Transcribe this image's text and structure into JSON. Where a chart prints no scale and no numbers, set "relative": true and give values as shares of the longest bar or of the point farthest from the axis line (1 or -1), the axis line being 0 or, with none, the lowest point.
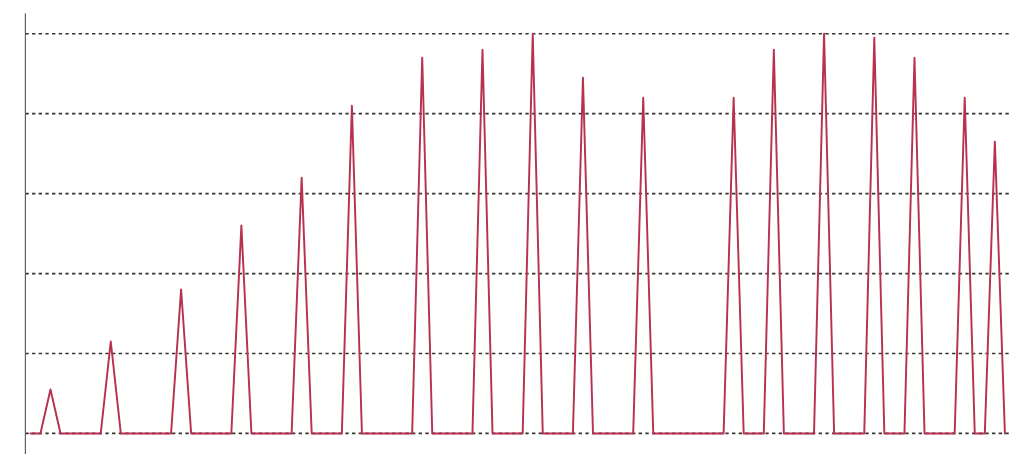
{
  "chart_data": {
    "type": "line",
    "relative": true,
    "grid": "y",
    "line_style": "solid",
    "categories": [
      null,
      null,
      null,
      null,
      null,
      null,
      null,
      null,
      null,
      null,
      null,
      null,
      null,
      null,
      null,
      null,
      null,
      null,
      null,
      null,
      null,
      null,
      null,
      null,
      null,
      null,
      null,
      null,
      null,
      null,
      null,
      null,
      null,
      null,
      null,
      null,
      null,
      null,
      null,
      null,
      null,
      null,
      null,
      null,
      null,
      null,
      null,
      null,
      null,
      null,
      null,
      null,
      null,
      null,
      null,
      null,
      null,
      null,
      null,
      null,
      null,
      null,
      null,
      null,
      null,
      null,
      null,
      null,
      null,
      null,
      null,
      null,
      null,
      null,
      null,
      null,
      null,
      null,
      null,
      null,
      null,
      null,
      null,
      null,
      null,
      null,
      null,
      null,
      null,
      null,
      null,
      null,
      null,
      null,
      null,
      null,
      null,
      null
    ],
    "series": [
      {
        "color": "#b8324f",
        "values": [
          0,
          0,
          0.11,
          0,
          0,
          0,
          0,
          0,
          0.23,
          0,
          0,
          0,
          0,
          0,
          0,
          0.36,
          0,
          0,
          0,
          0,
          0,
          0.52,
          0,
          0,
          0,
          0,
          0,
          0.64,
          0,
          0,
          0,
          0,
          0.82,
          0,
          0,
          0,
          0,
          0,
          0,
          0.94,
          0,
          0,
          0,
          0,
          0,
          0.96,
          0,
          0,
          0,
          0,
          1.0,
          0,
          0,
          0,
          0,
          0.89,
          0,
          0,
          0,
          0,
          0,
          0.84,
          0,
          0,
          0,
          0,
          0,
          0,
          0,
          0,
          0.84,
          0,
          0,
          0,
          0.96,
          0,
          0,
          0,
          0,
          1.0,
          0,
          0,
          0,
          0,
          0.99,
          0,
          0,
          0,
          0.94,
          0,
          0,
          0,
          0,
          0.84,
          0,
          0,
          0.73,
          0
        ]
      }
    ]
  }
}
